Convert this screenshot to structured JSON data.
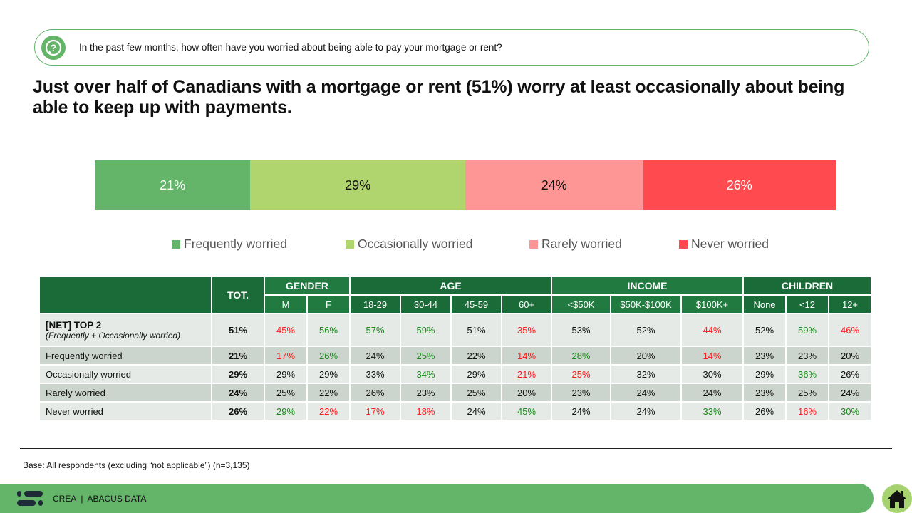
{
  "question": "In the past few months, how often have you worried about being able to pay your mortgage or rent?",
  "title": "Just over half of Canadians with a mortgage or rent (51%) worry at least occasionally about being able to keep up with payments.",
  "chart_data": {
    "type": "bar",
    "orientation": "horizontal-stacked",
    "categories": [
      "Frequently worried",
      "Occasionally worried",
      "Rarely worried",
      "Never worried"
    ],
    "values": [
      21,
      29,
      24,
      26
    ],
    "labels": [
      "21%",
      "29%",
      "24%",
      "26%"
    ],
    "colors": [
      "#64b46a",
      "#b0d46e",
      "#ff9696",
      "#ff4a50"
    ],
    "text_colors": [
      "#fff",
      "#111",
      "#111",
      "#fff"
    ],
    "legend_position": "bottom"
  },
  "table": {
    "tot_label": "TOT.",
    "groups": [
      {
        "label": "GENDER",
        "cols": [
          "M",
          "F"
        ]
      },
      {
        "label": "AGE",
        "cols": [
          "18-29",
          "30-44",
          "45-59",
          "60+"
        ]
      },
      {
        "label": "INCOME",
        "cols": [
          "<$50K",
          "$50K-$100K",
          "$100K+"
        ]
      },
      {
        "label": "CHILDREN",
        "cols": [
          "None",
          "<12",
          "12+"
        ]
      }
    ],
    "rows": [
      {
        "label": "[NET] TOP 2",
        "sublabel": "(Frequently + Occasionally worried)",
        "tot": "51%",
        "cells": [
          "45%",
          "56%",
          "57%",
          "59%",
          "51%",
          "35%",
          "53%",
          "52%",
          "44%",
          "52%",
          "59%",
          "46%"
        ],
        "sig": [
          "r",
          "g",
          "g",
          "g",
          "",
          "r",
          "",
          "",
          "r",
          "",
          "g",
          "r"
        ]
      },
      {
        "label": "Frequently worried",
        "tot": "21%",
        "cells": [
          "17%",
          "26%",
          "24%",
          "25%",
          "22%",
          "14%",
          "28%",
          "20%",
          "14%",
          "23%",
          "23%",
          "20%"
        ],
        "sig": [
          "r",
          "g",
          "",
          "g",
          "",
          "r",
          "g",
          "",
          "r",
          "",
          "",
          ""
        ]
      },
      {
        "label": "Occasionally worried",
        "tot": "29%",
        "cells": [
          "29%",
          "29%",
          "33%",
          "34%",
          "29%",
          "21%",
          "25%",
          "32%",
          "30%",
          "29%",
          "36%",
          "26%"
        ],
        "sig": [
          "",
          "",
          "",
          "g",
          "",
          "r",
          "r",
          "",
          "",
          "",
          "g",
          ""
        ]
      },
      {
        "label": "Rarely worried",
        "tot": "24%",
        "cells": [
          "25%",
          "22%",
          "26%",
          "23%",
          "25%",
          "20%",
          "23%",
          "24%",
          "24%",
          "23%",
          "25%",
          "24%"
        ],
        "sig": [
          "",
          "",
          "",
          "",
          "",
          "",
          "",
          "",
          "",
          "",
          "",
          ""
        ]
      },
      {
        "label": "Never worried",
        "tot": "26%",
        "cells": [
          "29%",
          "22%",
          "17%",
          "18%",
          "24%",
          "45%",
          "24%",
          "24%",
          "33%",
          "26%",
          "16%",
          "30%"
        ],
        "sig": [
          "g",
          "r",
          "r",
          "r",
          "",
          "g",
          "",
          "",
          "g",
          "",
          "r",
          "g"
        ]
      }
    ]
  },
  "base": "Base: All respondents (excluding “not applicable”) (n=3,135)",
  "footer": "CREA  |  ABACUS DATA"
}
